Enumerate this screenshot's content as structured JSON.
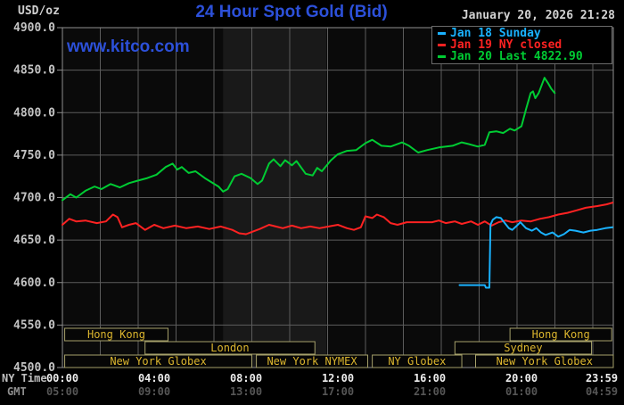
{
  "header": {
    "units_label": "USD/oz",
    "title": "24 Hour Spot Gold (Bid)",
    "datetime": "January 20, 2026 21:28",
    "watermark": "www.kitco.com"
  },
  "legend": {
    "items": [
      {
        "label": "Jan 18 Sunday",
        "color": "#1ab2ff"
      },
      {
        "label": "Jan 19 NY closed",
        "color": "#ff2222"
      },
      {
        "label": "Jan 20 Last 4822.90",
        "color": "#00cc33"
      }
    ]
  },
  "axes": {
    "y_ticks": [
      "4900.0",
      "4850.0",
      "4800.0",
      "4750.0",
      "4700.0",
      "4650.0",
      "4600.0",
      "4550.0",
      "4500.0"
    ],
    "x_row1_label": "NY Time",
    "x_row2_label": "GMT",
    "x_tick_hours": [
      0,
      4,
      8,
      12,
      16,
      20,
      23.983
    ],
    "x_ticks_ny": [
      "00:00",
      "04:00",
      "08:00",
      "12:00",
      "16:00",
      "20:00",
      "23:59"
    ],
    "x_ticks_gmt": [
      "05:00",
      "09:00",
      "13:00",
      "17:00",
      "21:00",
      "01:00",
      "04:59"
    ]
  },
  "sessions": [
    {
      "row": 1,
      "label": "Hong Kong",
      "start": 0.1,
      "end": 4.6
    },
    {
      "row": 1,
      "label": "Hong Kong",
      "start": 19.5,
      "end": 23.93
    },
    {
      "row": 2,
      "label": "London",
      "start": 3.6,
      "end": 11.0
    },
    {
      "row": 2,
      "label": "Sydney",
      "start": 17.1,
      "end": 23.05
    },
    {
      "row": 3,
      "label": "New York Globex",
      "start": 0.1,
      "end": 8.25
    },
    {
      "row": 3,
      "label": "New York NYMEX",
      "start": 8.45,
      "end": 13.3
    },
    {
      "row": 3,
      "label": "NY Globex",
      "start": 13.5,
      "end": 17.4
    },
    {
      "row": 3,
      "label": "New York Globex",
      "start": 18.0,
      "end": 24.0
    }
  ],
  "chart_data": {
    "type": "line",
    "title": "24 Hour Spot Gold (Bid)",
    "ylabel": "USD/oz",
    "ylim": [
      4500,
      4900
    ],
    "xlim_hours": [
      0,
      24
    ],
    "x_axis_label": "NY Time",
    "grid": true,
    "legend_position": "top-right",
    "shaded_band_hours": [
      7.0,
      11.5
    ],
    "last_price": 4822.9,
    "series": [
      {
        "name": "Jan 20",
        "color": "#00cc33",
        "points": [
          [
            0,
            4697
          ],
          [
            0.35,
            4704
          ],
          [
            0.6,
            4700
          ],
          [
            1.0,
            4708
          ],
          [
            1.4,
            4713
          ],
          [
            1.7,
            4710
          ],
          [
            2.1,
            4716
          ],
          [
            2.5,
            4712
          ],
          [
            2.9,
            4717
          ],
          [
            3.3,
            4720
          ],
          [
            3.7,
            4723
          ],
          [
            4.1,
            4727
          ],
          [
            4.5,
            4736
          ],
          [
            4.8,
            4740
          ],
          [
            5.0,
            4733
          ],
          [
            5.2,
            4736
          ],
          [
            5.5,
            4729
          ],
          [
            5.8,
            4731
          ],
          [
            6.2,
            4723
          ],
          [
            6.5,
            4718
          ],
          [
            6.8,
            4713
          ],
          [
            7.0,
            4707
          ],
          [
            7.2,
            4710
          ],
          [
            7.5,
            4725
          ],
          [
            7.8,
            4728
          ],
          [
            8.2,
            4723
          ],
          [
            8.5,
            4716
          ],
          [
            8.7,
            4720
          ],
          [
            9.0,
            4740
          ],
          [
            9.2,
            4745
          ],
          [
            9.5,
            4737
          ],
          [
            9.7,
            4744
          ],
          [
            10.0,
            4738
          ],
          [
            10.2,
            4743
          ],
          [
            10.6,
            4728
          ],
          [
            10.9,
            4726
          ],
          [
            11.1,
            4735
          ],
          [
            11.3,
            4731
          ],
          [
            11.7,
            4744
          ],
          [
            12.0,
            4751
          ],
          [
            12.4,
            4755
          ],
          [
            12.8,
            4756
          ],
          [
            13.2,
            4764
          ],
          [
            13.5,
            4768
          ],
          [
            13.9,
            4761
          ],
          [
            14.3,
            4760
          ],
          [
            14.8,
            4765
          ],
          [
            15.1,
            4761
          ],
          [
            15.5,
            4753
          ],
          [
            15.9,
            4756
          ],
          [
            16.4,
            4759
          ],
          [
            17.0,
            4761
          ],
          [
            17.4,
            4765
          ],
          [
            17.7,
            4763
          ],
          [
            18.1,
            4760
          ],
          [
            18.4,
            4762
          ],
          [
            18.6,
            4777
          ],
          [
            18.9,
            4778
          ],
          [
            19.2,
            4776
          ],
          [
            19.5,
            4781
          ],
          [
            19.7,
            4779
          ],
          [
            20.0,
            4784
          ],
          [
            20.2,
            4804
          ],
          [
            20.4,
            4823
          ],
          [
            20.5,
            4825
          ],
          [
            20.6,
            4817
          ],
          [
            20.75,
            4823
          ],
          [
            21.0,
            4841
          ],
          [
            21.15,
            4835
          ],
          [
            21.3,
            4828
          ],
          [
            21.45,
            4823
          ]
        ]
      },
      {
        "name": "Jan 19 NY closed",
        "color": "#ff2222",
        "points": [
          [
            0,
            4668
          ],
          [
            0.3,
            4675
          ],
          [
            0.6,
            4672
          ],
          [
            1.0,
            4673
          ],
          [
            1.5,
            4670
          ],
          [
            1.9,
            4672
          ],
          [
            2.2,
            4680
          ],
          [
            2.4,
            4677
          ],
          [
            2.6,
            4665
          ],
          [
            2.9,
            4668
          ],
          [
            3.2,
            4670
          ],
          [
            3.6,
            4662
          ],
          [
            4.0,
            4668
          ],
          [
            4.4,
            4664
          ],
          [
            4.9,
            4667
          ],
          [
            5.4,
            4664
          ],
          [
            5.9,
            4666
          ],
          [
            6.4,
            4663
          ],
          [
            6.9,
            4666
          ],
          [
            7.4,
            4662
          ],
          [
            7.7,
            4658
          ],
          [
            8.0,
            4657
          ],
          [
            8.3,
            4660
          ],
          [
            8.6,
            4663
          ],
          [
            9.0,
            4668
          ],
          [
            9.3,
            4666
          ],
          [
            9.6,
            4664
          ],
          [
            10.0,
            4667
          ],
          [
            10.4,
            4664
          ],
          [
            10.8,
            4666
          ],
          [
            11.2,
            4664
          ],
          [
            11.6,
            4666
          ],
          [
            12.0,
            4668
          ],
          [
            12.4,
            4664
          ],
          [
            12.7,
            4662
          ],
          [
            13.0,
            4665
          ],
          [
            13.2,
            4678
          ],
          [
            13.5,
            4676
          ],
          [
            13.7,
            4680
          ],
          [
            14.0,
            4677
          ],
          [
            14.3,
            4670
          ],
          [
            14.6,
            4668
          ],
          [
            15.0,
            4671
          ],
          [
            15.6,
            4671
          ],
          [
            16.1,
            4671
          ],
          [
            16.4,
            4673
          ],
          [
            16.7,
            4670
          ],
          [
            17.1,
            4672
          ],
          [
            17.4,
            4669
          ],
          [
            17.8,
            4672
          ],
          [
            18.1,
            4668
          ],
          [
            18.4,
            4672
          ],
          [
            18.7,
            4667
          ],
          [
            19.0,
            4671
          ],
          [
            19.3,
            4673
          ],
          [
            19.6,
            4671
          ],
          [
            20.0,
            4673
          ],
          [
            20.4,
            4672
          ],
          [
            20.8,
            4675
          ],
          [
            21.2,
            4677
          ],
          [
            21.6,
            4680
          ],
          [
            22.0,
            4682
          ],
          [
            22.4,
            4685
          ],
          [
            22.8,
            4688
          ],
          [
            23.3,
            4690
          ],
          [
            23.7,
            4692
          ],
          [
            23.97,
            4694
          ]
        ]
      },
      {
        "name": "Jan 18 Sunday",
        "color": "#1ab2ff",
        "points": [
          [
            17.3,
            4597
          ],
          [
            18.4,
            4597
          ],
          [
            18.45,
            4594
          ],
          [
            18.6,
            4594
          ],
          [
            18.65,
            4668
          ],
          [
            18.75,
            4674
          ],
          [
            18.9,
            4677
          ],
          [
            19.1,
            4676
          ],
          [
            19.3,
            4669
          ],
          [
            19.45,
            4664
          ],
          [
            19.6,
            4662
          ],
          [
            19.8,
            4667
          ],
          [
            19.95,
            4671
          ],
          [
            20.2,
            4664
          ],
          [
            20.45,
            4661
          ],
          [
            20.65,
            4664
          ],
          [
            20.85,
            4659
          ],
          [
            21.05,
            4656
          ],
          [
            21.35,
            4659
          ],
          [
            21.6,
            4654
          ],
          [
            21.85,
            4657
          ],
          [
            22.1,
            4662
          ],
          [
            22.35,
            4661
          ],
          [
            22.7,
            4659
          ],
          [
            23.0,
            4661
          ],
          [
            23.3,
            4662
          ],
          [
            23.65,
            4664
          ],
          [
            23.97,
            4665
          ]
        ]
      }
    ]
  }
}
